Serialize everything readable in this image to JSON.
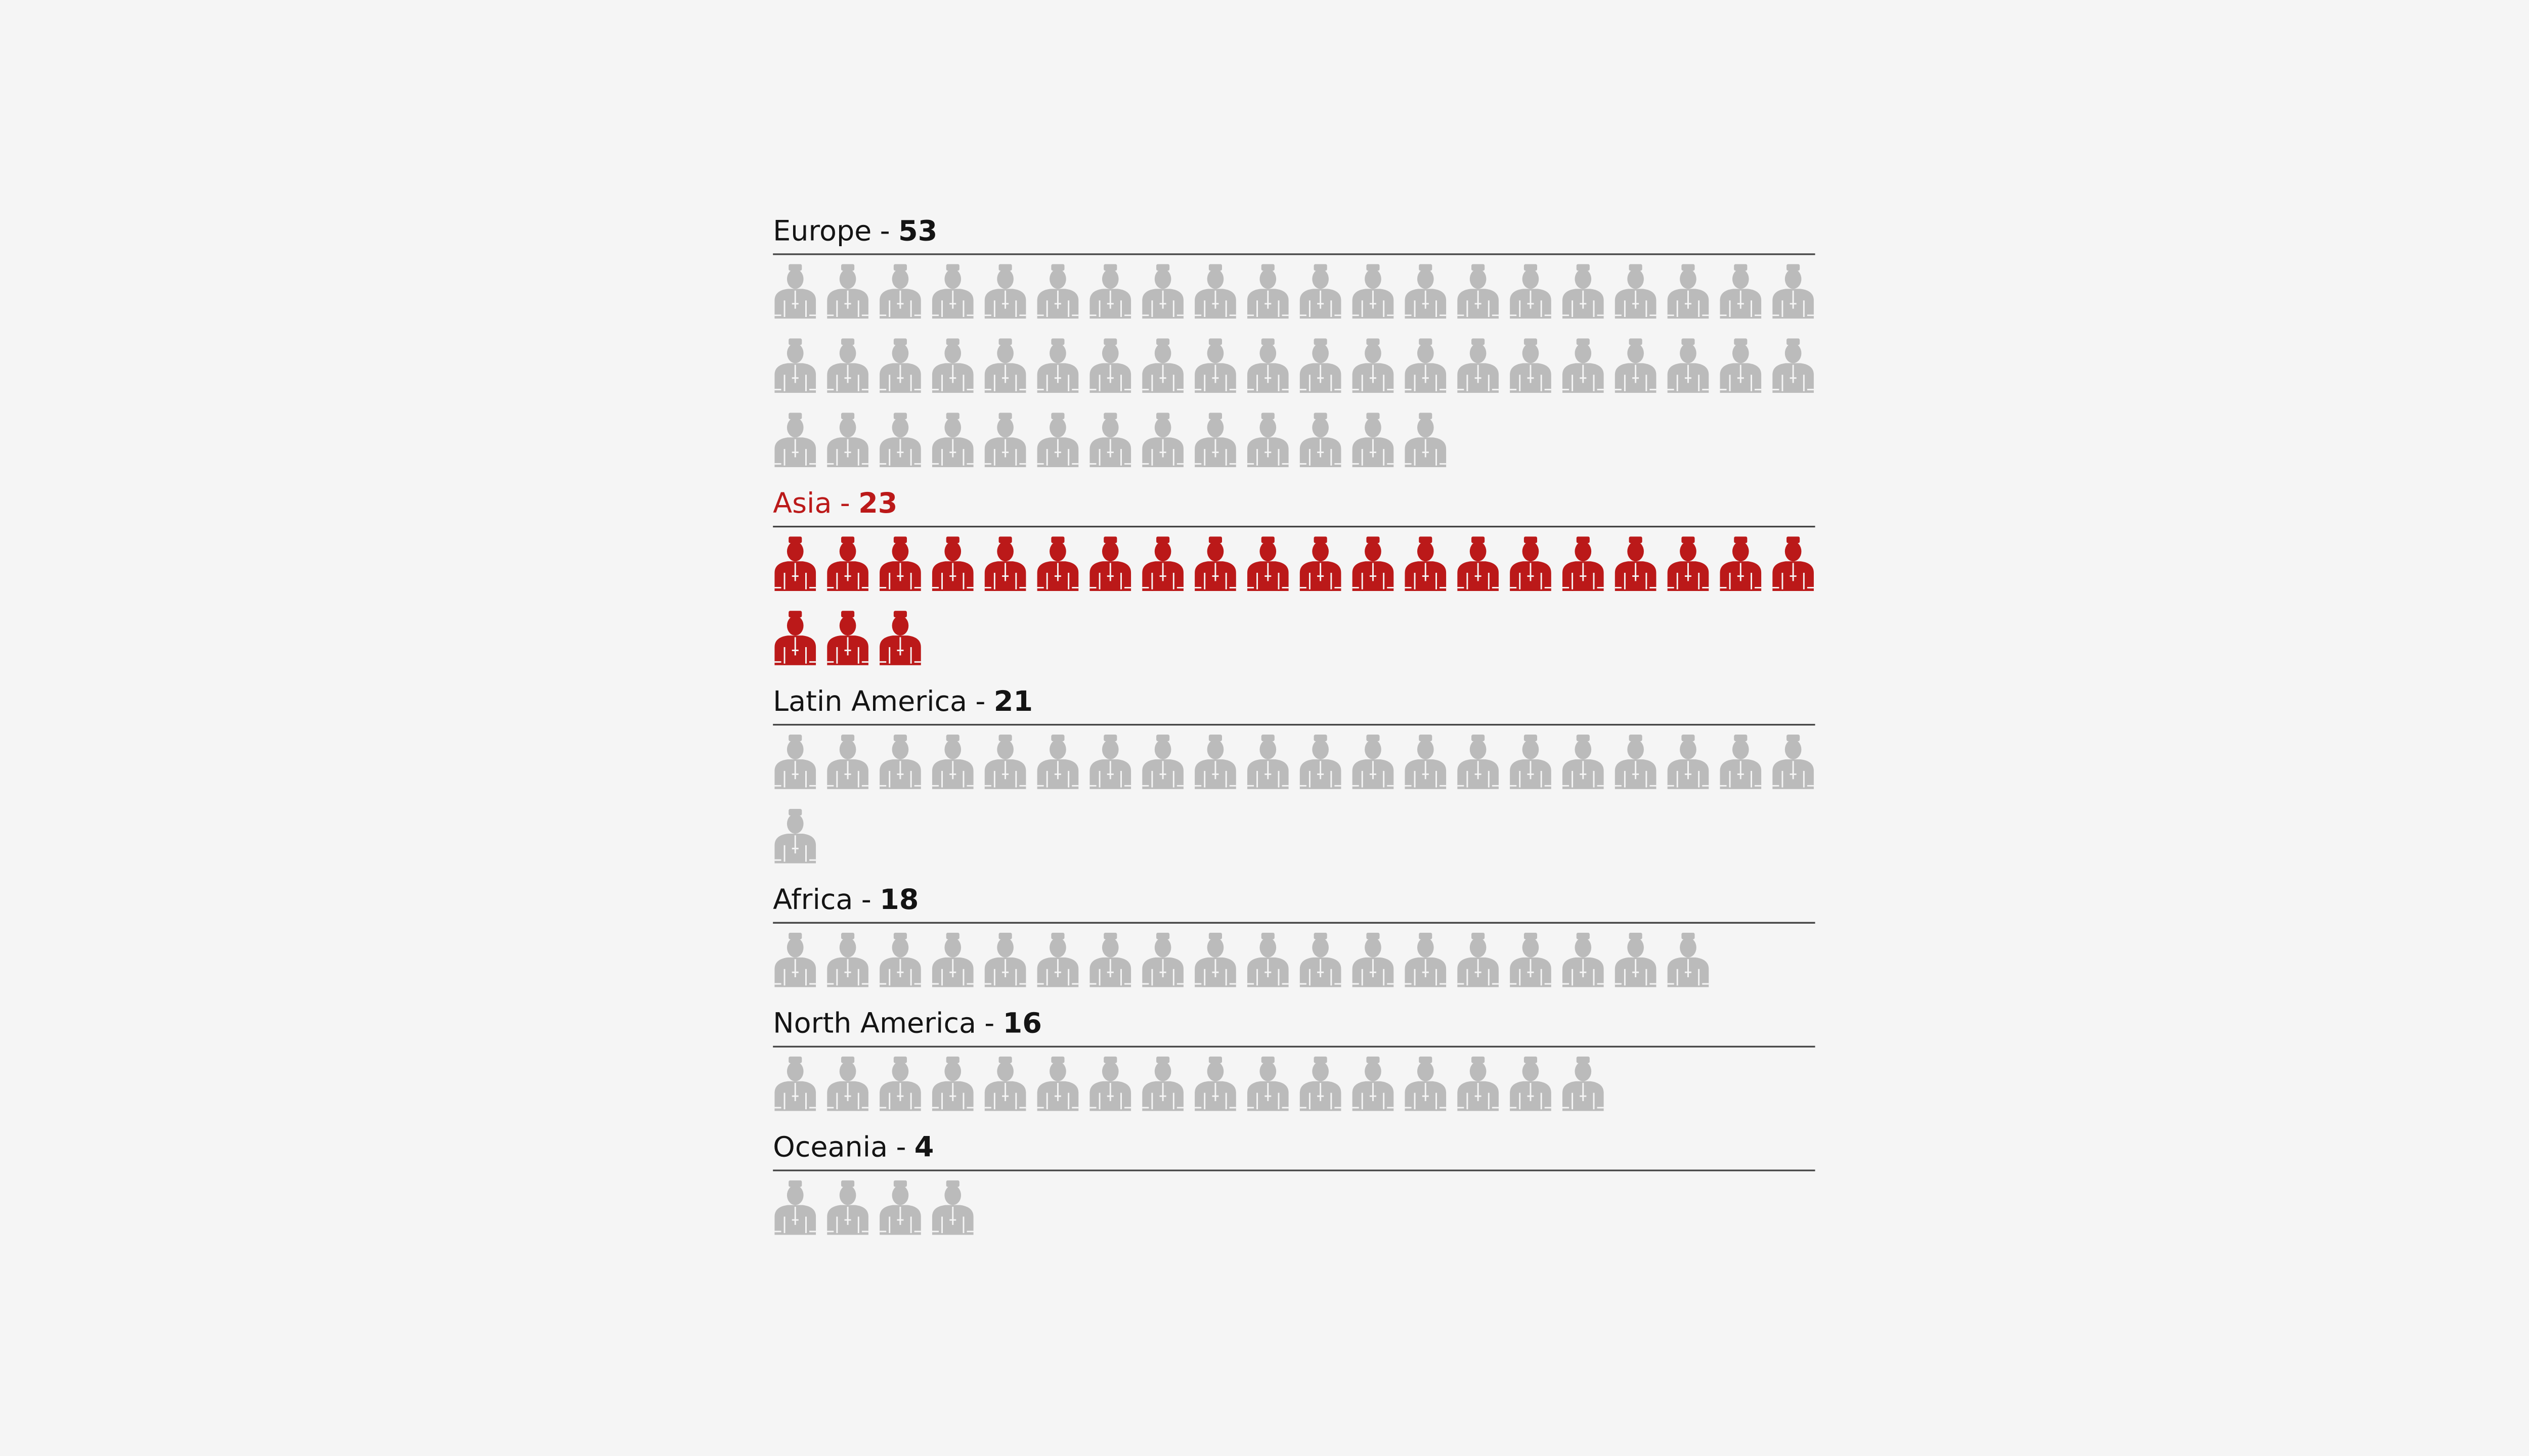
{
  "chart_data": {
    "type": "pictogram",
    "categories": [
      "Europe",
      "Asia",
      "Latin America",
      "Africa",
      "North America",
      "Oceania"
    ],
    "values": [
      53,
      23,
      21,
      18,
      16,
      4
    ],
    "colors": [
      "#bbbbbb",
      "#bb1919",
      "#bbbbbb",
      "#bbbbbb",
      "#bbbbbb",
      "#bbbbbb"
    ],
    "label_colors": [
      "#141414",
      "#bb1919",
      "#141414",
      "#141414",
      "#141414",
      "#141414"
    ],
    "label_separator": "-",
    "per_row": 20
  }
}
